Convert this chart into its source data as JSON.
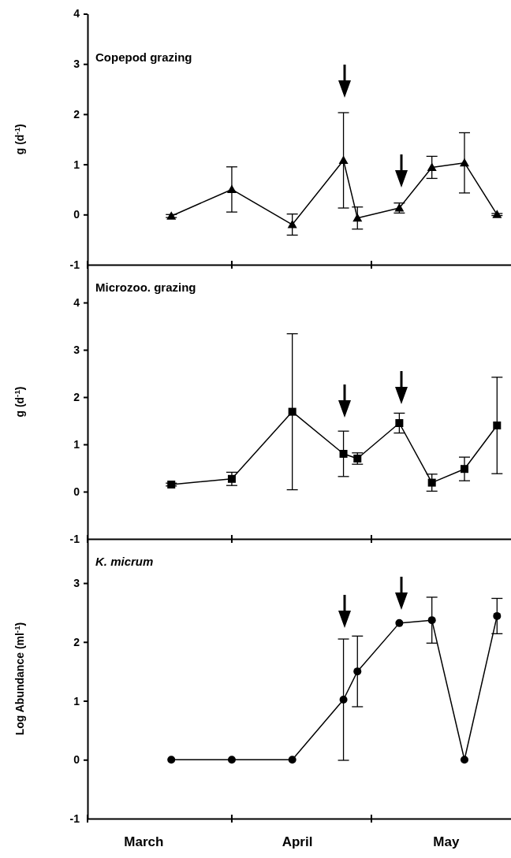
{
  "chart_data": [
    {
      "type": "line",
      "title": "Copepod grazing",
      "ylabel": "g (d$^{-1}$)",
      "x": [
        "--03-19",
        "--04-01",
        "--04-14",
        "--04-25",
        "--04-28",
        "--05-07",
        "--05-14",
        "--05-21",
        "--05-28"
      ],
      "series": [
        {
          "color": "#000000",
          "marker": "triangle",
          "values": [
            -0.03,
            0.5,
            -0.2,
            1.08,
            -0.07,
            0.13,
            0.94,
            1.03,
            0
          ],
          "errors": [
            0.03,
            0.45,
            0.21,
            0.95,
            0.22,
            0.1,
            0.22,
            0.6,
            0.02
          ]
        }
      ],
      "xlim": [
        "--03-01",
        "--05-31"
      ],
      "ylim": [
        -1,
        4
      ],
      "yticks": [
        -1,
        0,
        1,
        2,
        3,
        4
      ],
      "tick_labels": "y",
      "grid": false
    },
    {
      "type": "line",
      "title": "Microzoo. grazing",
      "ylabel": "g (d$^{-1}$)",
      "x": [
        "--03-19",
        "--04-01",
        "--04-14",
        "--04-25",
        "--04-28",
        "--05-07",
        "--05-14",
        "--05-21",
        "--05-28"
      ],
      "series": [
        {
          "color": "#000000",
          "marker": "square",
          "values": [
            0.15,
            0.27,
            1.69,
            0.8,
            0.7,
            1.45,
            0.19,
            0.48,
            1.4
          ],
          "errors": [
            0.03,
            0.14,
            1.65,
            0.48,
            0.12,
            0.21,
            0.18,
            0.25,
            1.02
          ]
        }
      ],
      "xlim": [
        "--03-01",
        "--05-31"
      ],
      "ylim": [
        -1,
        4.8
      ],
      "yticks": [
        -1,
        0,
        1,
        2,
        3,
        4
      ],
      "tick_labels": "y",
      "grid": false
    },
    {
      "type": "line",
      "title": "K. micrum",
      "ylabel": "Log Abundance (ml$^{-1}$)",
      "x": [
        "--03-19",
        "--04-01",
        "--04-14",
        "--04-25",
        "--04-28",
        "--05-07",
        "--05-14",
        "--05-21",
        "--05-28"
      ],
      "series": [
        {
          "color": "#000000",
          "marker": "circle",
          "values": [
            0,
            0,
            0,
            1.02,
            1.5,
            2.32,
            2.37,
            0,
            2.44
          ],
          "errors": [
            null,
            null,
            null,
            1.03,
            0.6,
            null,
            0.39,
            null,
            0.3
          ]
        }
      ],
      "xlim": [
        "--03-01",
        "--05-31"
      ],
      "xticks": [
        {
          "value": "--03-13",
          "label": "March"
        },
        {
          "value": "--04-15",
          "label": "April"
        },
        {
          "value": "--05-17",
          "label": "May"
        }
      ],
      "ylim": [
        -1,
        3.75
      ],
      "yticks": [
        -1,
        0,
        1,
        2,
        3
      ],
      "grid": false
    }
  ]
}
